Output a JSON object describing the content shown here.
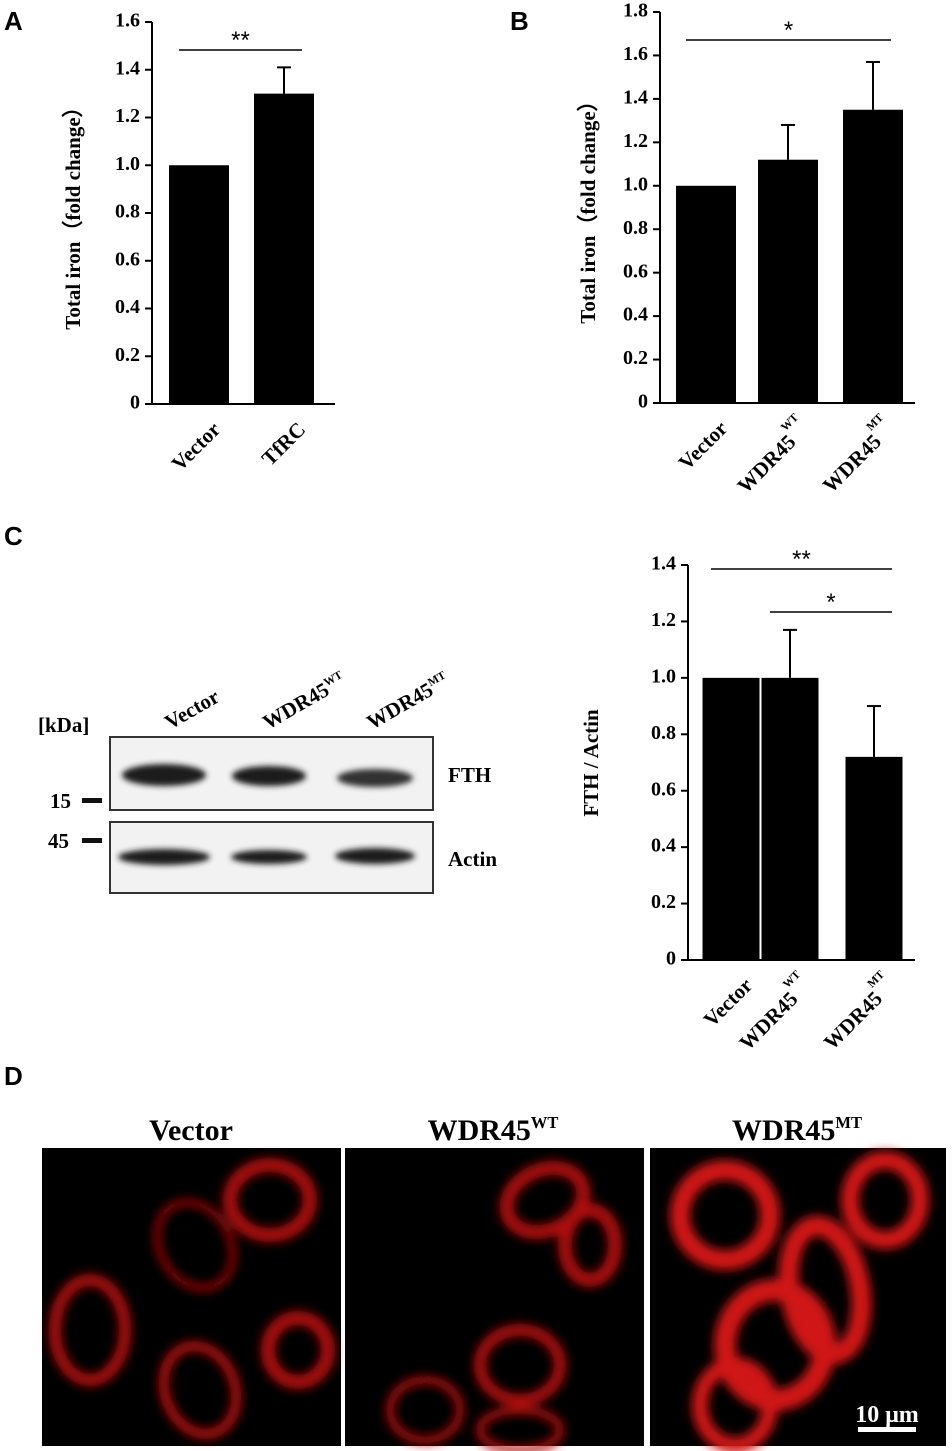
{
  "panels": {
    "a": "A",
    "b": "B",
    "c": "C",
    "d": "D"
  },
  "chart_data": [
    {
      "type": "bar",
      "y_label": "Total iron（fold change）",
      "categories": [
        "Vector",
        "TfRC"
      ],
      "category_sups": [
        null,
        null
      ],
      "values": [
        1,
        1.3
      ],
      "errors": [
        null,
        0.11
      ],
      "color": "#000000",
      "ylim": [
        0,
        1.6
      ],
      "yticks": [
        0,
        0.2,
        0.4,
        0.6,
        0.8,
        {
          "value": 1,
          "label": "1.0"
        },
        1.2,
        1.4,
        1.6
      ],
      "annotations": [
        {
          "text": "**",
          "from": 0,
          "to": 1
        }
      ]
    },
    {
      "type": "bar",
      "y_label": "Total iron（fold change）",
      "categories": [
        "Vector",
        "WDR45",
        "WDR45"
      ],
      "category_sups": [
        null,
        "WT",
        "MT"
      ],
      "values": [
        1,
        1.12,
        1.35
      ],
      "errors": [
        null,
        0.16,
        0.22
      ],
      "color": "#000000",
      "ylim": [
        0,
        1.8
      ],
      "yticks": [
        0,
        0.2,
        0.4,
        0.6,
        0.8,
        {
          "value": 1,
          "label": "1.0"
        },
        1.2,
        1.4,
        1.6,
        1.8
      ],
      "annotations": [
        {
          "text": "*",
          "from": 0,
          "to": 2
        }
      ]
    },
    {
      "type": "bar",
      "y_label": "FTH / Actin",
      "categories": [
        "Vector",
        "WDR45",
        "WDR45"
      ],
      "category_sups": [
        null,
        "WT",
        "MT"
      ],
      "values": [
        1,
        1,
        0.72
      ],
      "errors": [
        null,
        0.17,
        0.18
      ],
      "color": "#000000",
      "ylim": [
        0,
        1.4
      ],
      "yticks": [
        0,
        0.2,
        0.4,
        0.6,
        0.8,
        {
          "value": 1,
          "label": "1.0"
        },
        1.2,
        1.4
      ],
      "annotations": [
        {
          "text": "**",
          "from": 0,
          "to": 2
        },
        {
          "text": "*",
          "from": 1,
          "to": 2
        }
      ]
    }
  ],
  "blot": {
    "kda_label": "[kDa]",
    "lanes": [
      "Vector",
      "WDR45",
      "WDR45"
    ],
    "lane_sups": [
      null,
      "WT",
      "MT"
    ],
    "markers": [
      "15",
      "45"
    ],
    "bands": [
      "FTH",
      "Actin"
    ]
  },
  "imaging": {
    "titles": [
      "Vector",
      "WDR45",
      "WDR45"
    ],
    "title_sups": [
      null,
      "WT",
      "MT"
    ],
    "scale_bar": "10 μm"
  }
}
